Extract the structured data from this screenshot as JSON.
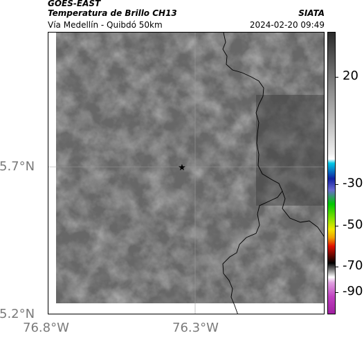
{
  "header": {
    "satellite": "GOES-EAST",
    "product": "Temperatura de Brillo CH13",
    "route": "Vía Medellín - Quibdó 50km",
    "organization": "SIATA",
    "timestamp": "2024-02-20 09:49"
  },
  "map": {
    "latitude_labels": [
      "5.7°N",
      "5.2°N"
    ],
    "longitude_labels": [
      "76.8°W",
      "76.3°W"
    ],
    "marker": "star-icon",
    "graticule": true
  },
  "colorbar": {
    "ticks": [
      "20",
      "-30",
      "-50",
      "-70",
      "-90"
    ],
    "colors": {
      "dark": "#2a2a2a",
      "gray": "#8a8a8a",
      "light": "#ededed",
      "cyan": "#00c8e6",
      "blue": "#1020a0",
      "green": "#00c800",
      "yellow": "#f0e600",
      "red": "#e01000",
      "black": "#000000",
      "magenta": "#c040c0"
    }
  }
}
